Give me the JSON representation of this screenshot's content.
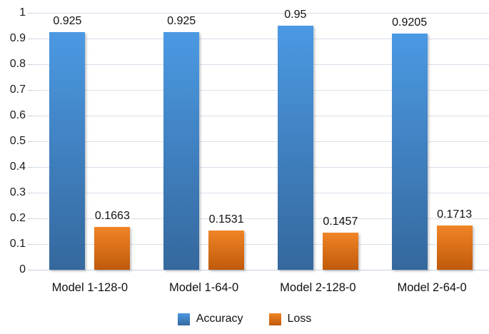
{
  "chart_data": {
    "type": "bar",
    "title": "",
    "xlabel": "",
    "ylabel": "",
    "categories": [
      "Model 1-128-0",
      "Model 1-64-0",
      "Model 2-128-0",
      "Model 2-64-0"
    ],
    "series": [
      {
        "name": "Accuracy",
        "values": [
          0.925,
          0.925,
          0.95,
          0.9205
        ],
        "labels": [
          "0.925",
          "0.925",
          "0.95",
          "0.9205"
        ],
        "color_top": "#4b99e3",
        "color_bottom": "#35689d",
        "legend_color": "#4693da"
      },
      {
        "name": "Loss",
        "values": [
          0.1663,
          0.1531,
          0.1457,
          0.1713
        ],
        "labels": [
          "0.1663",
          "0.1531",
          "0.1457",
          "0.1713"
        ],
        "color_top": "#f08426",
        "color_bottom": "#c05a0b",
        "legend_color": "#e8700e"
      }
    ],
    "ylim": [
      0,
      1
    ],
    "ytick_step": 0.1,
    "yticks": [
      "1",
      "0.9",
      "0.8",
      "0.7",
      "0.6",
      "0.5",
      "0.4",
      "0.3",
      "0.2",
      "0.1",
      "0"
    ],
    "grid": true,
    "gridline_color": "#d9dfe9",
    "legend_position": "bottom"
  }
}
